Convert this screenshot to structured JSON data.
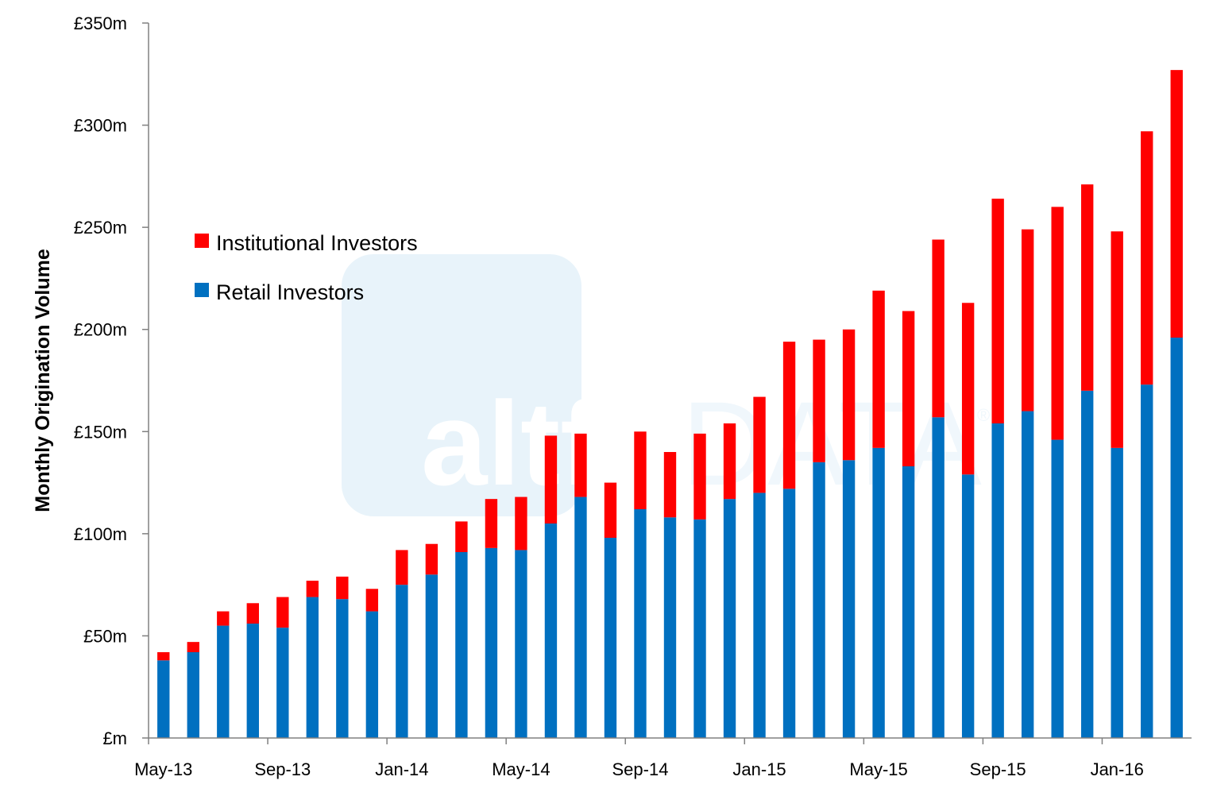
{
  "chart_data": {
    "type": "bar",
    "stacked": true,
    "title": "",
    "xlabel": "",
    "ylabel": "Monthly Origination Volume",
    "ylim": [
      0,
      350
    ],
    "y_ticks": [
      0,
      50,
      100,
      150,
      200,
      250,
      300,
      350
    ],
    "y_tick_labels": [
      "£m",
      "£50m",
      "£100m",
      "£150m",
      "£200m",
      "£250m",
      "£300m",
      "£350m"
    ],
    "categories": [
      "May-13",
      "Jun-13",
      "Jul-13",
      "Aug-13",
      "Sep-13",
      "Oct-13",
      "Nov-13",
      "Dec-13",
      "Jan-14",
      "Feb-14",
      "Mar-14",
      "Apr-14",
      "May-14",
      "Jun-14",
      "Jul-14",
      "Aug-14",
      "Sep-14",
      "Oct-14",
      "Nov-14",
      "Dec-14",
      "Jan-15",
      "Feb-15",
      "Mar-15",
      "Apr-15",
      "May-15",
      "Jun-15",
      "Jul-15",
      "Aug-15",
      "Sep-15",
      "Oct-15",
      "Nov-15",
      "Dec-15",
      "Jan-16",
      "Feb-16",
      "Mar-16"
    ],
    "x_tick_labels": [
      {
        "index": 0,
        "label": "May-13"
      },
      {
        "index": 4,
        "label": "Sep-13"
      },
      {
        "index": 8,
        "label": "Jan-14"
      },
      {
        "index": 12,
        "label": "May-14"
      },
      {
        "index": 16,
        "label": "Sep-14"
      },
      {
        "index": 20,
        "label": "Jan-15"
      },
      {
        "index": 24,
        "label": "May-15"
      },
      {
        "index": 28,
        "label": "Sep-15"
      },
      {
        "index": 32,
        "label": "Jan-16"
      }
    ],
    "series": [
      {
        "name": "Retail Investors",
        "color": "#0070c0",
        "values": [
          38,
          42,
          55,
          56,
          54,
          69,
          68,
          62,
          75,
          80,
          91,
          93,
          92,
          105,
          118,
          98,
          112,
          108,
          107,
          117,
          120,
          122,
          135,
          136,
          142,
          133,
          157,
          129,
          154,
          160,
          146,
          170,
          142,
          173,
          196
        ]
      },
      {
        "name": "Institutional Investors",
        "color": "#ff0000",
        "values": [
          4,
          5,
          7,
          10,
          15,
          8,
          11,
          11,
          17,
          15,
          15,
          24,
          26,
          43,
          31,
          27,
          38,
          32,
          42,
          37,
          47,
          72,
          60,
          64,
          77,
          76,
          87,
          84,
          110,
          89,
          114,
          101,
          106,
          124,
          131
        ]
      }
    ],
    "legend": [
      "Institutional Investors",
      "Retail Investors"
    ],
    "legend_position": "upper-left",
    "grid": false
  },
  "watermark": {
    "brand_bold": "altfi",
    "brand_light": "DATA",
    "mark": "®"
  },
  "colors": {
    "retail": "#0070c0",
    "institutional": "#ff0000",
    "axis": "#808080"
  }
}
